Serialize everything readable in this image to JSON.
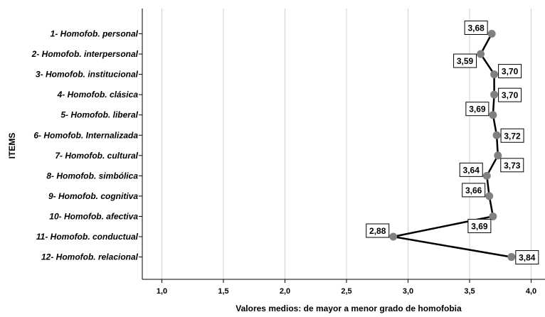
{
  "chart_data": {
    "type": "line",
    "orientation": "horizontal",
    "categories": [
      "1- Homofob. personal",
      "2- Homofob. interpersonal",
      "3- Homofob. institucional",
      "4- Homofob. clásica",
      "5- Homofob. liberal",
      "6- Homofob. Internalizada",
      "7- Homofob. cultural",
      "8- Homofob. simbólica",
      "9- Homofob. cognitiva",
      "10- Homofob. afectiva",
      "11- Homofob. conductual",
      "12- Homofob. relacional"
    ],
    "values": [
      3.68,
      3.59,
      3.7,
      3.7,
      3.69,
      3.72,
      3.73,
      3.64,
      3.66,
      3.69,
      2.88,
      3.84
    ],
    "data_labels": [
      "3,68",
      "3,59",
      "3,70",
      "3,70",
      "3,69",
      "3,72",
      "3,73",
      "3,64",
      "3,66",
      "3,69",
      "2,88",
      "3,84"
    ],
    "xticks": [
      1.0,
      1.5,
      2.0,
      2.5,
      3.0,
      3.5,
      4.0
    ],
    "xtick_labels": [
      "1,0",
      "1,5",
      "2,0",
      "2,5",
      "3,0",
      "3,5",
      "4,0"
    ],
    "xlim": [
      0.9,
      4.05
    ],
    "xlabel": "Valores medios: de mayor a menor grado de homofobia",
    "ylabel": "ITEMS",
    "grid": "vertical",
    "line_color": "#000000",
    "marker_color": "#808080"
  }
}
